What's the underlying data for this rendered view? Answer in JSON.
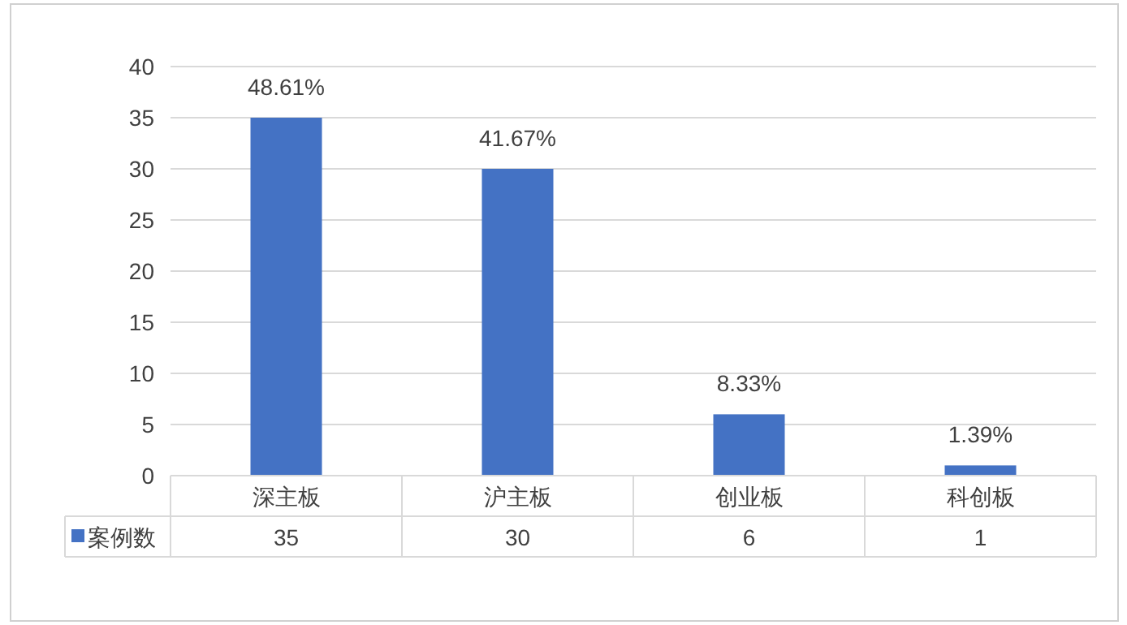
{
  "chart_data": {
    "type": "bar",
    "categories": [
      "深主板",
      "沪主板",
      "创业板",
      "科创板"
    ],
    "series": [
      {
        "name": "案例数",
        "color": "#4472c4",
        "values": [
          35,
          30,
          6,
          1
        ],
        "value_labels": [
          "35",
          "30",
          "6",
          "1"
        ]
      }
    ],
    "annotations": [
      {
        "text": "48.61%",
        "x": "深主板",
        "y": 35
      },
      {
        "text": "41.67%",
        "x": "沪主板",
        "y": 30
      },
      {
        "text": "8.33%",
        "x": "创业板",
        "y": 6
      },
      {
        "text": "1.39%",
        "x": "科创板",
        "y": 1
      }
    ],
    "ylim": [
      0,
      40
    ],
    "yticks": [
      0,
      5,
      10,
      15,
      20,
      25,
      30,
      35,
      40
    ],
    "grid": "y",
    "legend": "bottom"
  }
}
